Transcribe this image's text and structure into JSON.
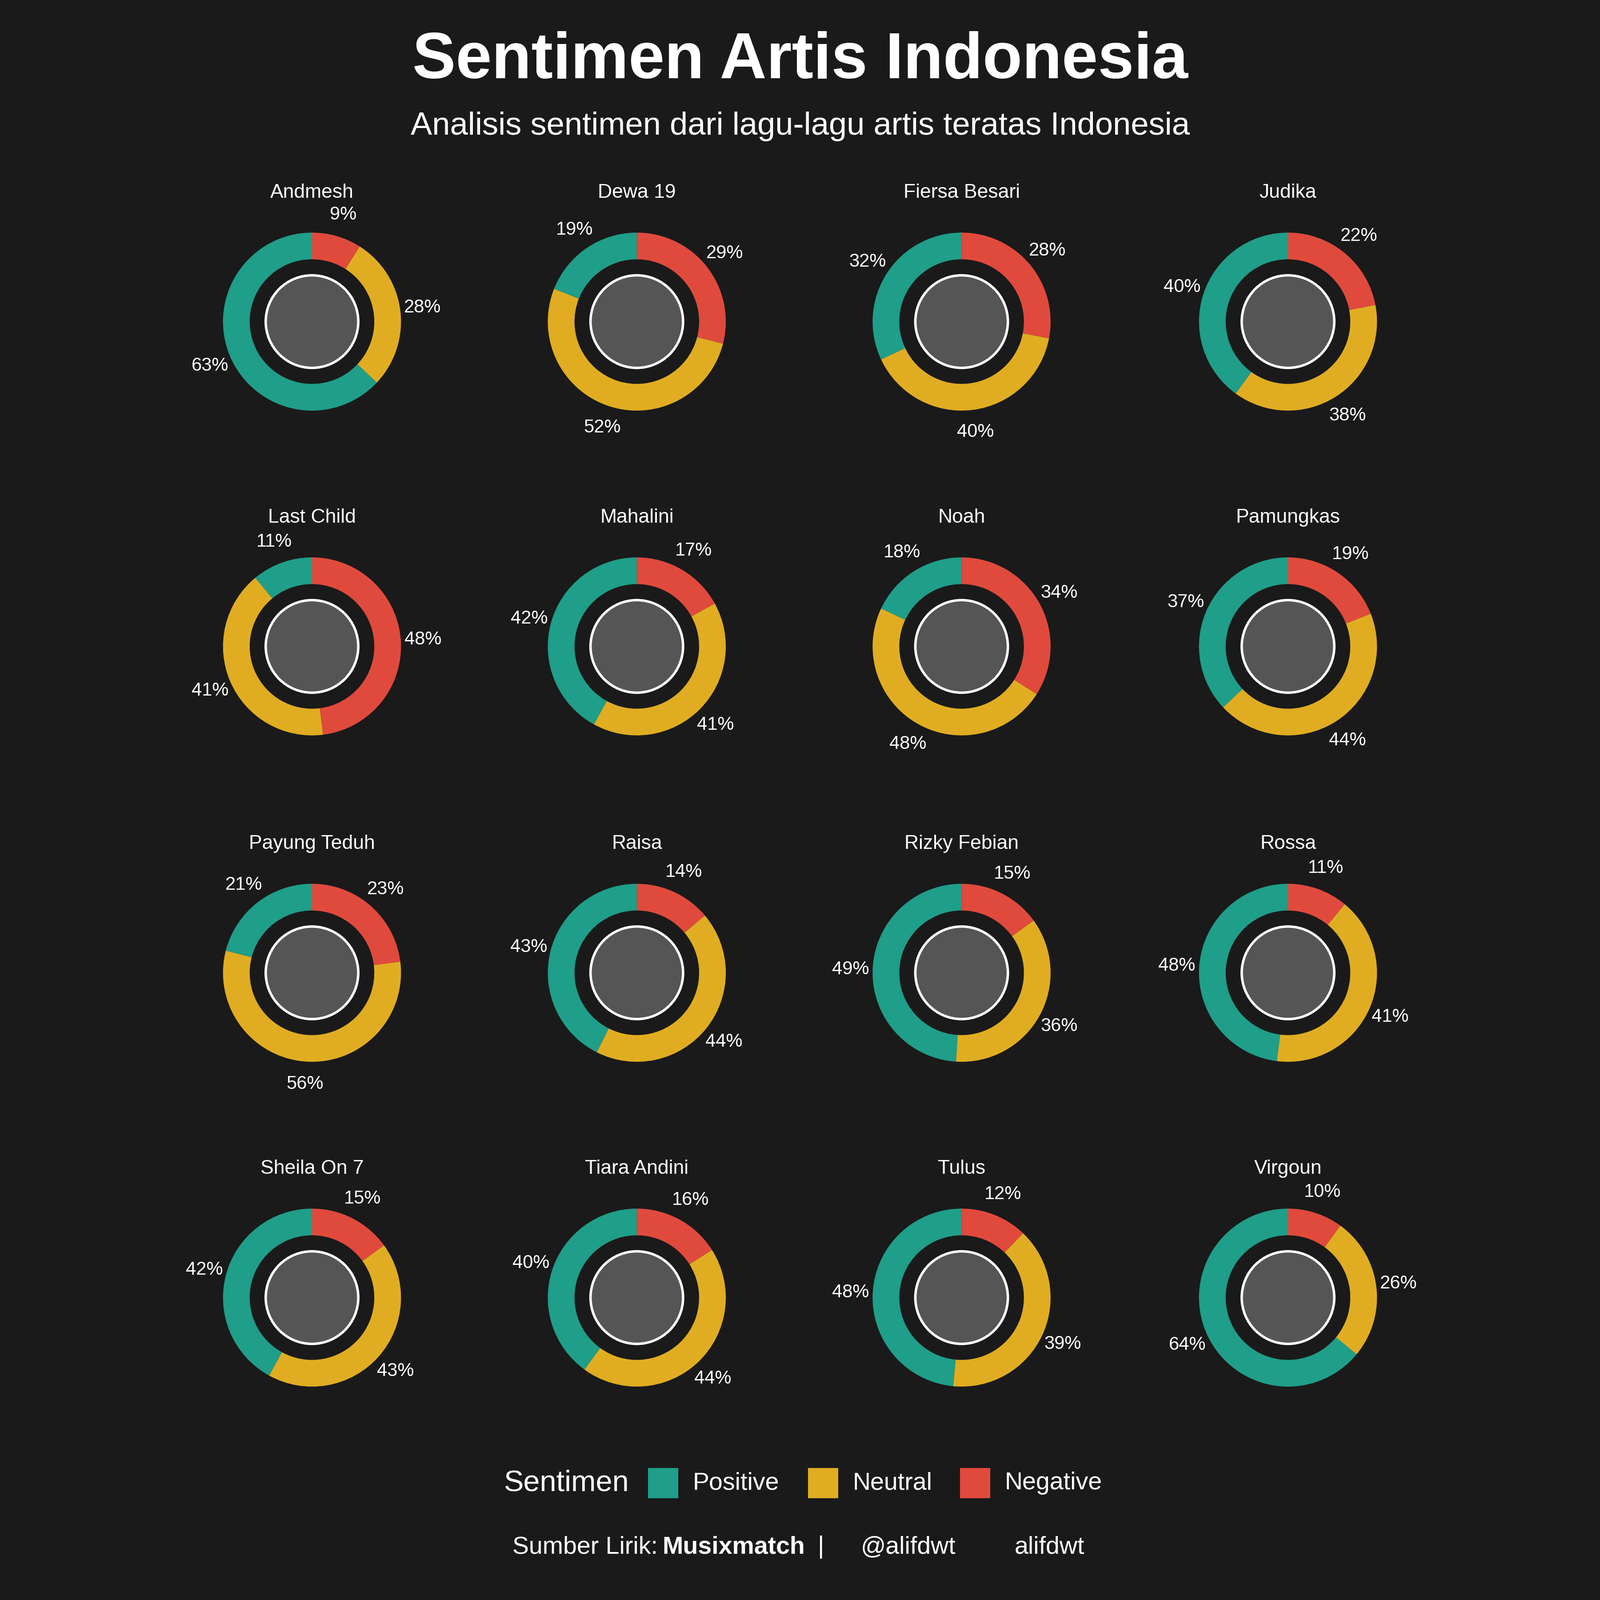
{
  "title": "Sentimen Artis Indonesia",
  "subtitle": "Analisis sentimen dari lagu-lagu artis teratas Indonesia",
  "legend_title": "Sentimen",
  "source": {
    "label": "Sumber Lirik:",
    "name": "Musixmatch",
    "separator": "|",
    "twitter": "@alifdwt",
    "github": "alifdwt"
  },
  "chart_data": [
    {
      "type": "pie",
      "title": "Andmesh",
      "categories": [
        "Positive",
        "Neutral",
        "Negative"
      ],
      "values": [
        63,
        28,
        9
      ],
      "value_labels": [
        "63%",
        "28%",
        "9%"
      ],
      "colors": [
        "#1f9e89",
        "#e0ad22",
        "#e04a3c"
      ],
      "data_labels": true
    },
    {
      "type": "pie",
      "title": "Dewa 19",
      "categories": [
        "Positive",
        "Neutral",
        "Negative"
      ],
      "values": [
        19,
        52,
        29
      ],
      "value_labels": [
        "19%",
        "52%",
        "29%"
      ],
      "colors": [
        "#1f9e89",
        "#e0ad22",
        "#e04a3c"
      ],
      "data_labels": true
    },
    {
      "type": "pie",
      "title": "Fiersa Besari",
      "categories": [
        "Positive",
        "Neutral",
        "Negative"
      ],
      "values": [
        32,
        40,
        28
      ],
      "value_labels": [
        "32%",
        "40%",
        "28%"
      ],
      "colors": [
        "#1f9e89",
        "#e0ad22",
        "#e04a3c"
      ],
      "data_labels": true
    },
    {
      "type": "pie",
      "title": "Judika",
      "categories": [
        "Positive",
        "Neutral",
        "Negative"
      ],
      "values": [
        40,
        38,
        22
      ],
      "value_labels": [
        "40%",
        "38%",
        "22%"
      ],
      "colors": [
        "#1f9e89",
        "#e0ad22",
        "#e04a3c"
      ],
      "data_labels": true
    },
    {
      "type": "pie",
      "title": "Last Child",
      "categories": [
        "Positive",
        "Neutral",
        "Negative"
      ],
      "values": [
        11,
        41,
        48
      ],
      "value_labels": [
        "11%",
        "41%",
        "48%"
      ],
      "colors": [
        "#1f9e89",
        "#e0ad22",
        "#e04a3c"
      ],
      "data_labels": true
    },
    {
      "type": "pie",
      "title": "Mahalini",
      "categories": [
        "Positive",
        "Neutral",
        "Negative"
      ],
      "values": [
        42,
        41,
        17
      ],
      "value_labels": [
        "42%",
        "41%",
        "17%"
      ],
      "colors": [
        "#1f9e89",
        "#e0ad22",
        "#e04a3c"
      ],
      "data_labels": true
    },
    {
      "type": "pie",
      "title": "Noah",
      "categories": [
        "Positive",
        "Neutral",
        "Negative"
      ],
      "values": [
        18,
        48,
        34
      ],
      "value_labels": [
        "18%",
        "48%",
        "34%"
      ],
      "colors": [
        "#1f9e89",
        "#e0ad22",
        "#e04a3c"
      ],
      "data_labels": true
    },
    {
      "type": "pie",
      "title": "Pamungkas",
      "categories": [
        "Positive",
        "Neutral",
        "Negative"
      ],
      "values": [
        37,
        44,
        19
      ],
      "value_labels": [
        "37%",
        "44%",
        "19%"
      ],
      "colors": [
        "#1f9e89",
        "#e0ad22",
        "#e04a3c"
      ],
      "data_labels": true
    },
    {
      "type": "pie",
      "title": "Payung Teduh",
      "categories": [
        "Positive",
        "Neutral",
        "Negative"
      ],
      "values": [
        21,
        56,
        23
      ],
      "value_labels": [
        "21%",
        "56%",
        "23%"
      ],
      "colors": [
        "#1f9e89",
        "#e0ad22",
        "#e04a3c"
      ],
      "data_labels": true
    },
    {
      "type": "pie",
      "title": "Raisa",
      "categories": [
        "Positive",
        "Neutral",
        "Negative"
      ],
      "values": [
        43,
        44,
        14
      ],
      "value_labels": [
        "43%",
        "44%",
        "14%"
      ],
      "colors": [
        "#1f9e89",
        "#e0ad22",
        "#e04a3c"
      ],
      "data_labels": true
    },
    {
      "type": "pie",
      "title": "Rizky Febian",
      "categories": [
        "Positive",
        "Neutral",
        "Negative"
      ],
      "values": [
        49,
        36,
        15
      ],
      "value_labels": [
        "49%",
        "36%",
        "15%"
      ],
      "colors": [
        "#1f9e89",
        "#e0ad22",
        "#e04a3c"
      ],
      "data_labels": true
    },
    {
      "type": "pie",
      "title": "Rossa",
      "categories": [
        "Positive",
        "Neutral",
        "Negative"
      ],
      "values": [
        48,
        41,
        11
      ],
      "value_labels": [
        "48%",
        "41%",
        "11%"
      ],
      "colors": [
        "#1f9e89",
        "#e0ad22",
        "#e04a3c"
      ],
      "data_labels": true
    },
    {
      "type": "pie",
      "title": "Sheila On 7",
      "categories": [
        "Positive",
        "Neutral",
        "Negative"
      ],
      "values": [
        42,
        43,
        15
      ],
      "value_labels": [
        "42%",
        "43%",
        "15%"
      ],
      "colors": [
        "#1f9e89",
        "#e0ad22",
        "#e04a3c"
      ],
      "data_labels": true
    },
    {
      "type": "pie",
      "title": "Tiara Andini",
      "categories": [
        "Positive",
        "Neutral",
        "Negative"
      ],
      "values": [
        40,
        44,
        16
      ],
      "value_labels": [
        "40%",
        "44%",
        "16%"
      ],
      "colors": [
        "#1f9e89",
        "#e0ad22",
        "#e04a3c"
      ],
      "data_labels": true
    },
    {
      "type": "pie",
      "title": "Tulus",
      "categories": [
        "Positive",
        "Neutral",
        "Negative"
      ],
      "values": [
        48,
        39,
        12
      ],
      "value_labels": [
        "48%",
        "39%",
        "12%"
      ],
      "colors": [
        "#1f9e89",
        "#e0ad22",
        "#e04a3c"
      ],
      "data_labels": true
    },
    {
      "type": "pie",
      "title": "Virgoun",
      "categories": [
        "Positive",
        "Neutral",
        "Negative"
      ],
      "values": [
        64,
        26,
        10
      ],
      "value_labels": [
        "64%",
        "26%",
        "10%"
      ],
      "colors": [
        "#1f9e89",
        "#e0ad22",
        "#e04a3c"
      ],
      "data_labels": true
    }
  ]
}
